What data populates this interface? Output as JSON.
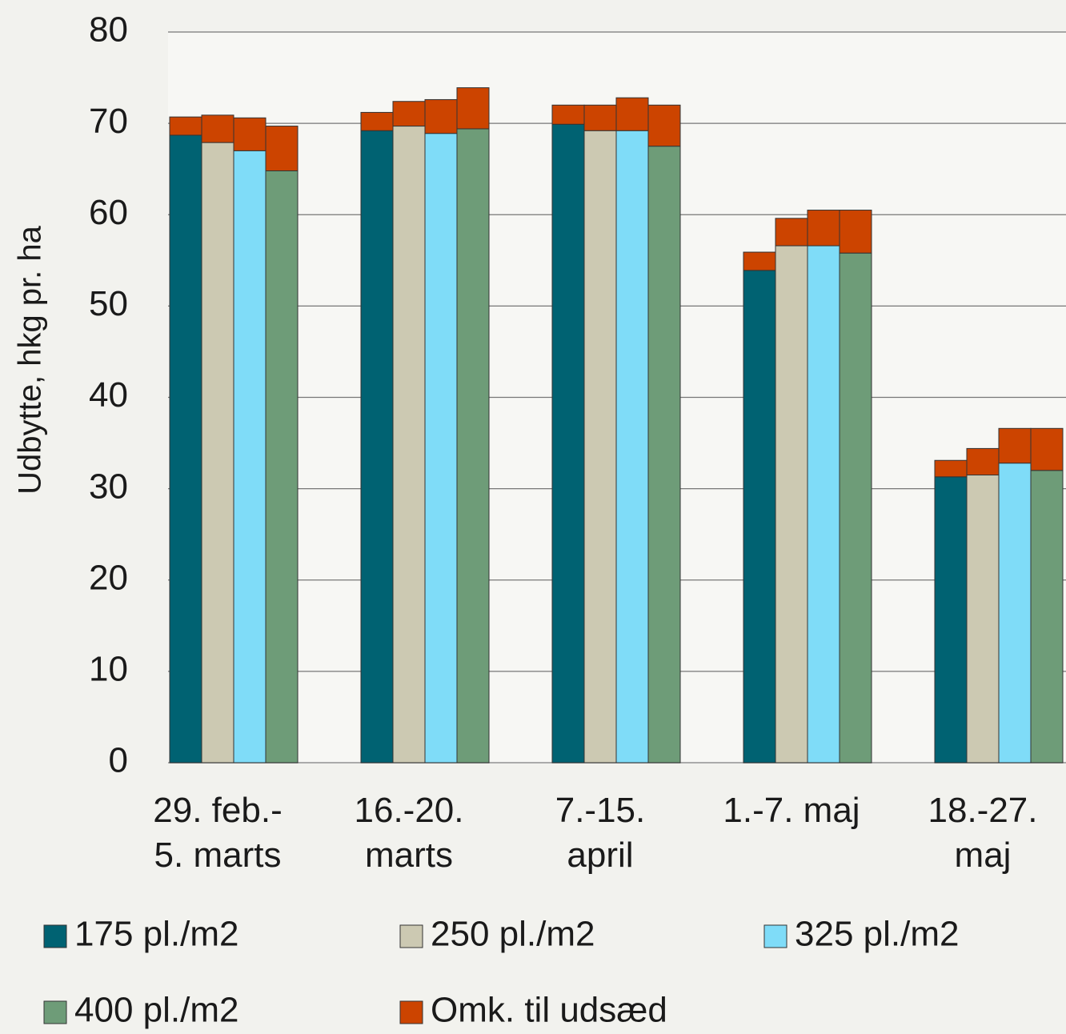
{
  "chart_data": {
    "type": "bar",
    "y_label": "Udbytte, hkg pr. ha",
    "categories": [
      [
        "29. feb.-",
        "5. marts"
      ],
      [
        "16.-20.",
        "marts"
      ],
      [
        "7.-15.",
        "april"
      ],
      [
        "1.-7. maj"
      ],
      [
        "18.-27.",
        "maj"
      ]
    ],
    "series": [
      {
        "name": "175 pl./m2",
        "color": "#006272",
        "values": [
          68.7,
          69.2,
          69.9,
          53.9,
          31.3
        ]
      },
      {
        "name": "250 pl./m2",
        "color": "#ccc9b2",
        "values": [
          67.9,
          69.7,
          69.2,
          56.6,
          31.5
        ]
      },
      {
        "name": "325 pl./m2",
        "color": "#7fdcf8",
        "values": [
          67.0,
          68.9,
          69.2,
          56.6,
          32.8
        ]
      },
      {
        "name": "400 pl./m2",
        "color": "#6e9c78",
        "values": [
          64.8,
          69.4,
          67.5,
          55.8,
          32.0
        ]
      },
      {
        "name": "Omk. til udsæd",
        "color": "#cc4400",
        "values": [
          [
            2.0,
            3.0,
            3.6,
            4.9
          ],
          [
            2.0,
            2.7,
            3.7,
            4.5
          ],
          [
            2.1,
            2.8,
            3.6,
            4.5
          ],
          [
            2.0,
            3.0,
            3.9,
            4.7
          ],
          [
            1.8,
            2.9,
            3.8,
            4.6
          ]
        ]
      }
    ],
    "ylim": [
      0,
      80
    ],
    "yticks": [
      0,
      10,
      20,
      30,
      40,
      50,
      60,
      70,
      80
    ],
    "grid": true
  }
}
